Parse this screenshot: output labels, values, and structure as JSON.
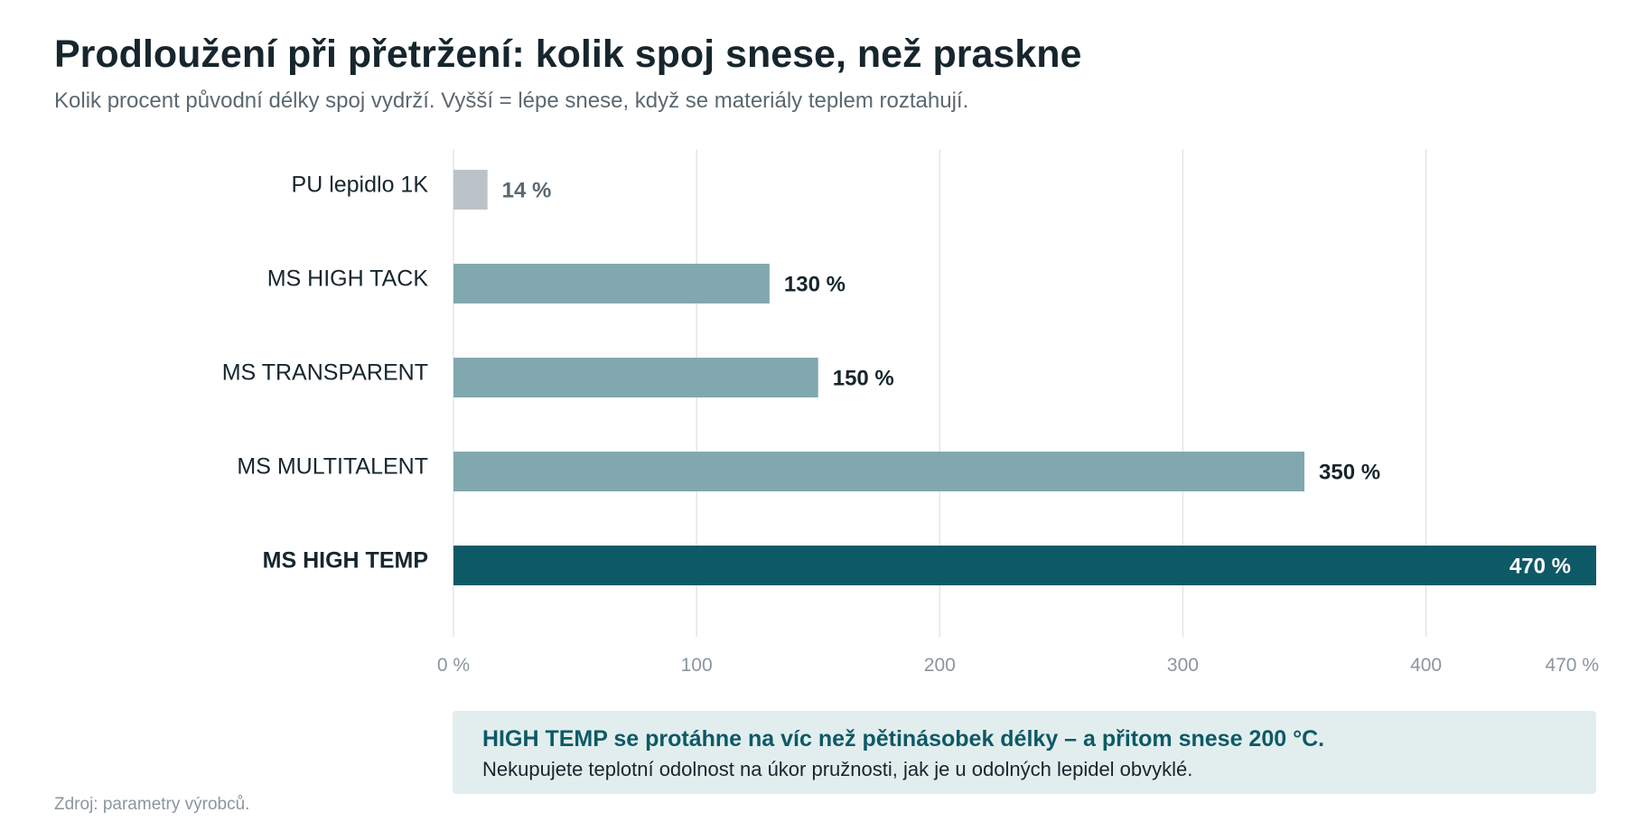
{
  "header": {
    "title": "Prodloužení při přetržení: kolik spoj snese, než praskne",
    "subtitle": "Kolik procent původní délky spoj vydrží. Vyšší = lépe snese, když se materiály teplem roztahují."
  },
  "chart_data": {
    "type": "bar",
    "orientation": "horizontal",
    "categories": [
      "PU lepidlo 1K",
      "MS HIGH TACK",
      "MS TRANSPARENT",
      "MS MULTITALENT",
      "MS HIGH TEMP"
    ],
    "values": [
      14,
      130,
      150,
      350,
      470
    ],
    "value_labels": [
      "14 %",
      "130 %",
      "150 %",
      "350 %",
      "470 %"
    ],
    "highlight": "MS HIGH TEMP",
    "xlim": [
      0,
      470
    ],
    "x_ticks": [
      0,
      100,
      200,
      300,
      400,
      470
    ],
    "x_tick_labels": [
      "0 %",
      "100",
      "200",
      "300",
      "400",
      "470 %"
    ],
    "grid": true,
    "colors": {
      "baseline": "#bcc3c8",
      "competitor": "#82a8af",
      "highlight": "#0e5966",
      "label_muted": "#5b6870",
      "label_dark": "#17262d",
      "label_on_bar": "#ffffff",
      "tick": "#8a969c",
      "grid": "#e3e5e7"
    }
  },
  "callout": {
    "title": "HIGH TEMP se protáhne na víc než pětinásobek délky – a přitom snese 200 °C.",
    "text": "Nekupujete teplotní odolnost na úkor pružnosti, jak je u odolných lepidel obvyklé."
  },
  "footer": {
    "source": "Zdroj: parametry výrobců."
  }
}
